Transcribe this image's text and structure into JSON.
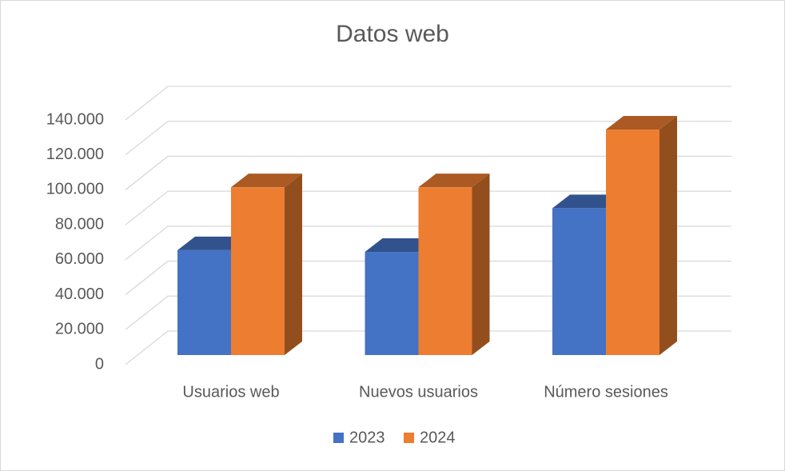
{
  "chart_data": {
    "type": "bar3d",
    "title": "Datos web",
    "categories": [
      "Usuarios web",
      "Nuevos usuarios",
      "Número sesiones"
    ],
    "series": [
      {
        "name": "2023",
        "color": "#4472c4",
        "values": [
          60000,
          59000,
          84000
        ]
      },
      {
        "name": "2024",
        "color": "#ed7d31",
        "values": [
          96000,
          96000,
          129000
        ]
      }
    ],
    "ylim": [
      0,
      140000
    ],
    "yticks": [
      0,
      {
        "value": 20000,
        "label": "20.000"
      },
      {
        "value": 40000,
        "label": "40.000"
      },
      {
        "value": 60000,
        "label": "60.000"
      },
      {
        "value": 80000,
        "label": "80.000"
      },
      {
        "value": 100000,
        "label": "100.000"
      },
      {
        "value": 120000,
        "label": "120.000"
      },
      {
        "value": 140000,
        "label": "140.000"
      }
    ],
    "grid": true,
    "legend": "bottom"
  }
}
